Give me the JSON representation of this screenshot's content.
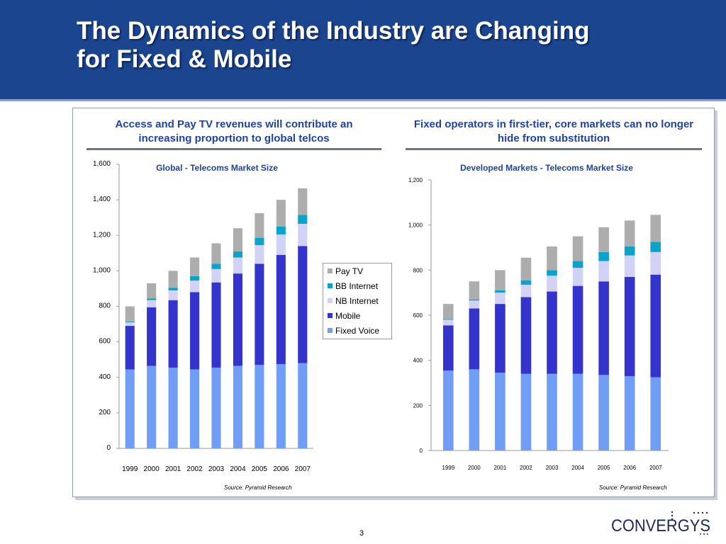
{
  "slide": {
    "title": "The Dynamics of the Industry are Changing\nfor Fixed & Mobile",
    "page_number": "3",
    "logo_text": "CONVERGYS"
  },
  "left_panel": {
    "heading": "Access and Pay TV revenues will contribute an increasing proportion to global telcos",
    "source": "Source: Pyramid Research"
  },
  "right_panel": {
    "heading": "Fixed operators in first-tier, core markets can no longer hide from substitution",
    "source": "Source: Pyramid Research"
  },
  "colors": {
    "header": "#1c4590",
    "fixed_voice": "#6f9ef4",
    "mobile": "#3434cc",
    "nb_internet": "#d2d2f6",
    "bb_internet": "#0aa3c9",
    "pay_tv": "#adadad"
  },
  "chart_data": [
    {
      "type": "bar",
      "stacked": true,
      "title": "Global - Telecoms Market Size",
      "categories": [
        "1999",
        "2000",
        "2001",
        "2002",
        "2003",
        "2004",
        "2005",
        "2006",
        "2007"
      ],
      "ylim": [
        0,
        1600
      ],
      "yticks": [
        "0",
        "200",
        "400",
        "600",
        "800",
        "1,000",
        "1,200",
        "1,400",
        "1,600"
      ],
      "legend_position": "right",
      "series": [
        {
          "name": "Fixed Voice",
          "values": [
            445,
            465,
            455,
            445,
            455,
            465,
            470,
            475,
            480
          ]
        },
        {
          "name": "Mobile",
          "values": [
            245,
            330,
            380,
            435,
            480,
            520,
            570,
            615,
            660
          ]
        },
        {
          "name": "NB Internet",
          "values": [
            20,
            40,
            55,
            65,
            75,
            90,
            105,
            115,
            125
          ]
        },
        {
          "name": "BB Internet",
          "values": [
            5,
            10,
            15,
            25,
            30,
            35,
            40,
            45,
            50
          ]
        },
        {
          "name": "Pay TV",
          "values": [
            85,
            85,
            95,
            105,
            115,
            130,
            140,
            150,
            150
          ]
        }
      ]
    },
    {
      "type": "bar",
      "stacked": true,
      "title": "Developed Markets - Telecoms Market Size",
      "categories": [
        "1999",
        "2000",
        "2001",
        "2002",
        "2003",
        "2004",
        "2005",
        "2006",
        "2007"
      ],
      "ylim": [
        0,
        1200
      ],
      "yticks": [
        "0",
        "200",
        "400",
        "600",
        "800",
        "1,000",
        "1,200"
      ],
      "series": [
        {
          "name": "Fixed Voice",
          "values": [
            355,
            360,
            345,
            340,
            340,
            340,
            335,
            330,
            325
          ]
        },
        {
          "name": "Mobile",
          "values": [
            200,
            270,
            305,
            340,
            365,
            390,
            415,
            440,
            455
          ]
        },
        {
          "name": "NB Internet",
          "values": [
            25,
            35,
            50,
            55,
            70,
            80,
            90,
            95,
            100
          ]
        },
        {
          "name": "BB Internet",
          "values": [
            3,
            5,
            10,
            20,
            25,
            30,
            40,
            40,
            45
          ]
        },
        {
          "name": "Pay TV",
          "values": [
            67,
            80,
            90,
            100,
            105,
            110,
            110,
            115,
            120
          ]
        }
      ]
    }
  ]
}
